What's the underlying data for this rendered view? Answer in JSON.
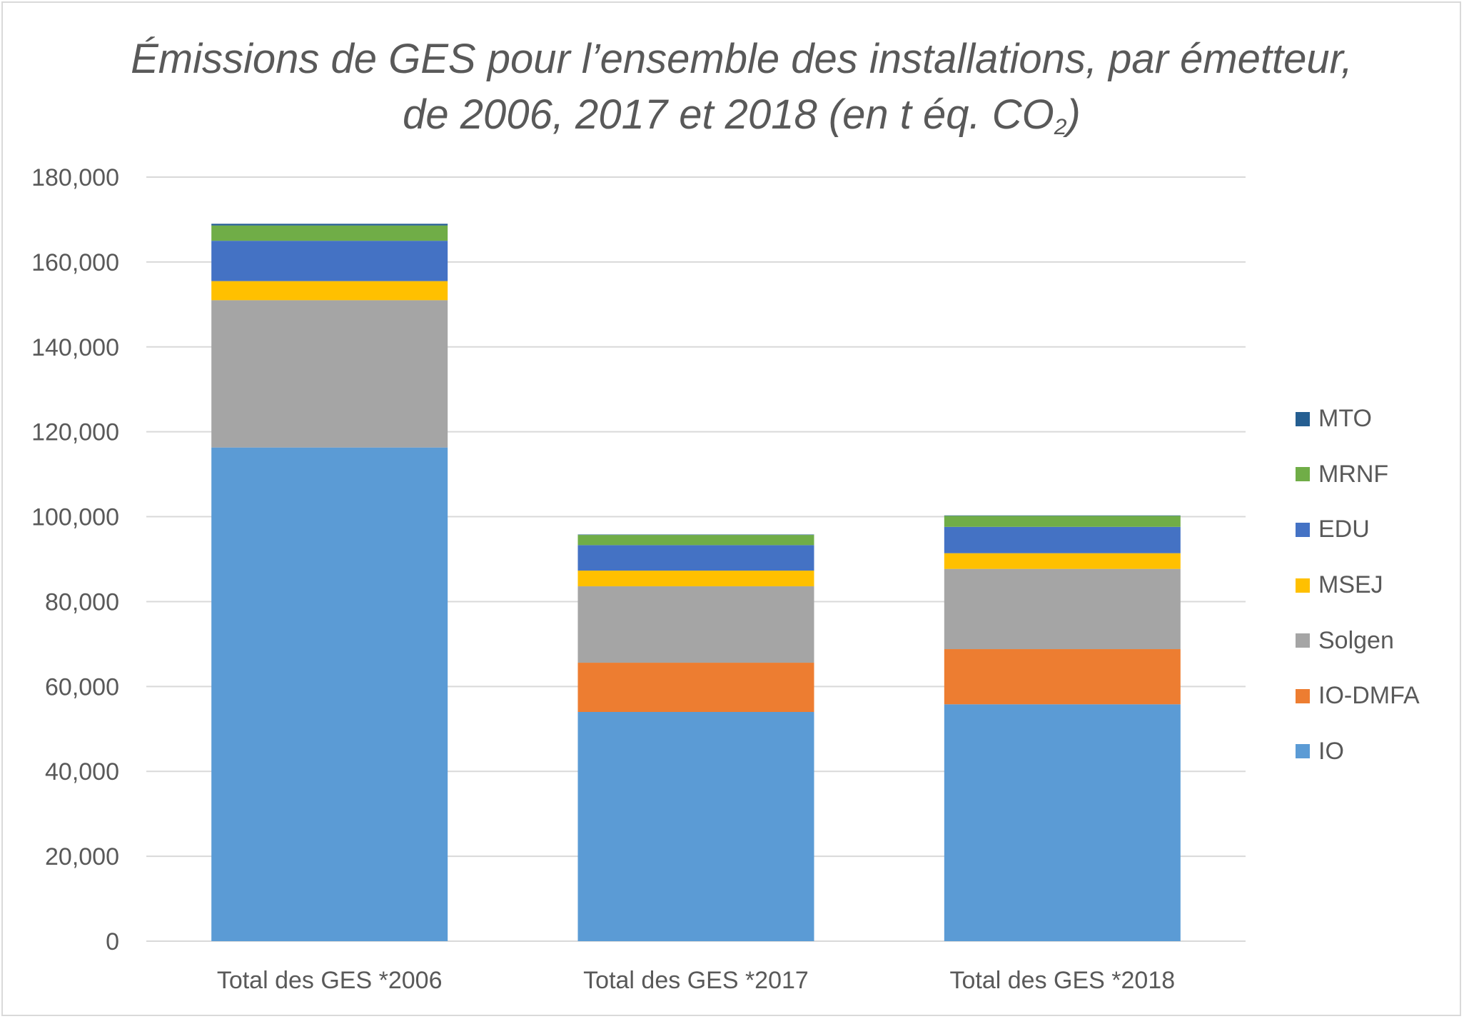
{
  "chart_data": {
    "type": "bar",
    "stacked": true,
    "title": "Émissions de GES pour l’ensemble des installations, par émetteur, de 2006, 2017 et 2018 (en t éq. CO",
    "title_subscript": "2",
    "title_end": ")",
    "xlabel": "",
    "ylabel": "",
    "categories": [
      "Total des GES *2006",
      "Total des GES *2017",
      "Total des GES *2018"
    ],
    "ylim": [
      0,
      180000
    ],
    "yticks": [
      0,
      20000,
      40000,
      60000,
      80000,
      100000,
      120000,
      140000,
      160000,
      180000
    ],
    "ytick_labels": [
      "0",
      "20,000",
      "40,000",
      "60,000",
      "80,000",
      "100,000",
      "120,000",
      "140,000",
      "160,000",
      "180,000"
    ],
    "grid": true,
    "legend_position": "right",
    "series": [
      {
        "name": "IO",
        "color": "#5b9bd5",
        "values": [
          116300,
          54000,
          55800
        ]
      },
      {
        "name": "IO-DMFA",
        "color": "#ed7d31",
        "values": [
          0,
          11600,
          13000
        ]
      },
      {
        "name": "Solgen",
        "color": "#a5a5a5",
        "values": [
          34700,
          18000,
          18900
        ]
      },
      {
        "name": "MSEJ",
        "color": "#ffc000",
        "values": [
          4500,
          3700,
          3700
        ]
      },
      {
        "name": "EDU",
        "color": "#4472c4",
        "values": [
          9500,
          6000,
          6200
        ]
      },
      {
        "name": "MRNF",
        "color": "#70ad47",
        "values": [
          3600,
          2400,
          2600
        ]
      },
      {
        "name": "MTO",
        "color": "#255e91",
        "values": [
          400,
          100,
          100
        ]
      }
    ]
  }
}
